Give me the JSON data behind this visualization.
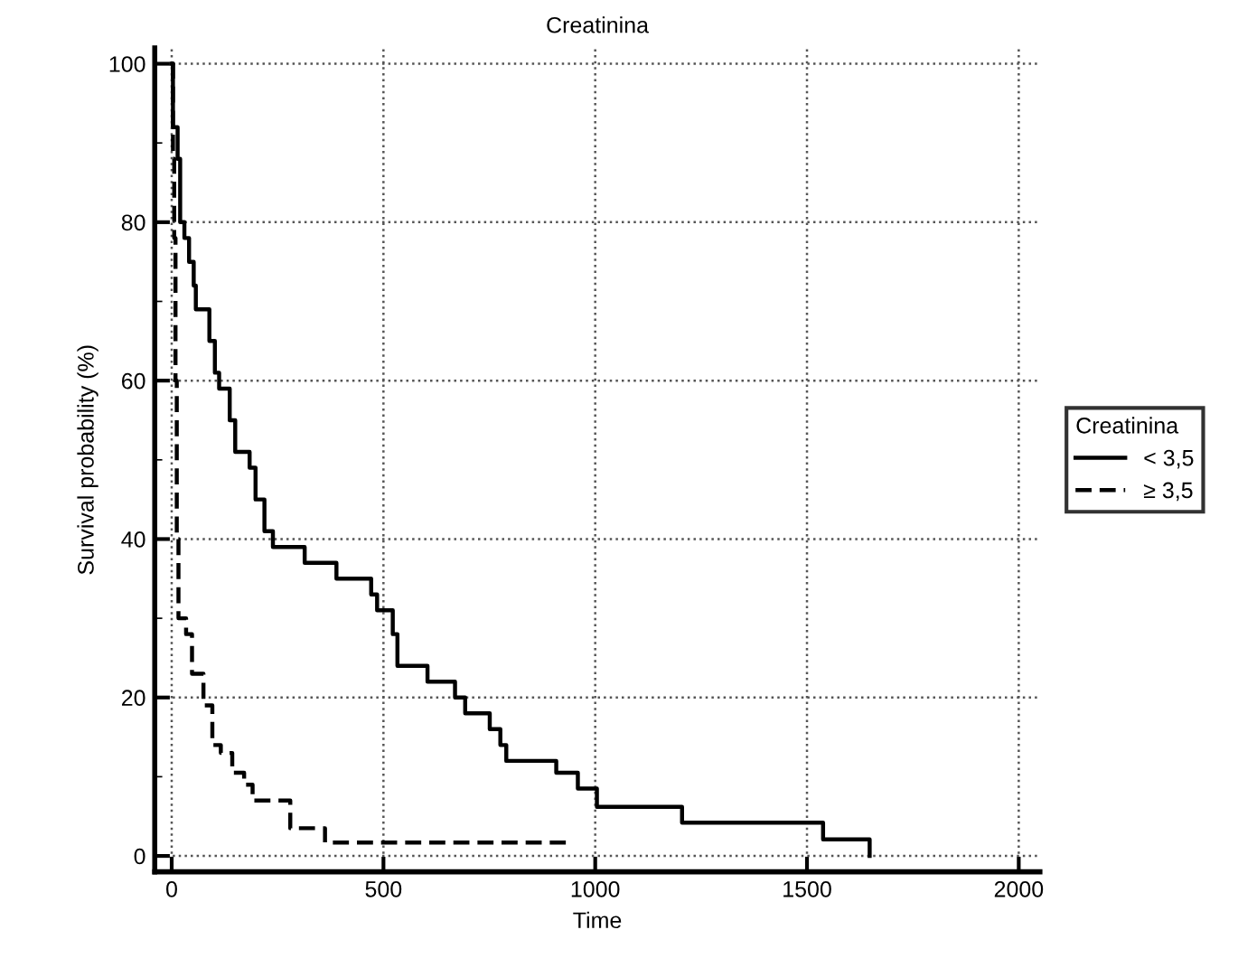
{
  "chart_data": {
    "type": "step",
    "title": "Creatinina",
    "xlabel": "Time",
    "ylabel": "Survival probability (%)",
    "legend_title": "Creatinina",
    "legend": "right",
    "grid": true,
    "xlim": [
      -40,
      2050
    ],
    "ylim": [
      -2,
      102
    ],
    "xticks": [
      0,
      500,
      1000,
      1500,
      2000
    ],
    "yticks": [
      0,
      {
        "value": 10,
        "label": null
      },
      20,
      {
        "value": 30,
        "label": null
      },
      40,
      {
        "value": 50,
        "label": null
      },
      60,
      {
        "value": 70,
        "label": null
      },
      80,
      {
        "value": 90,
        "label": null
      },
      100
    ],
    "series": [
      {
        "name": "< 3,5",
        "color": "#000000",
        "line_style": "solid",
        "x": [
          0,
          3,
          14,
          20,
          30,
          41,
          52,
          57,
          89,
          102,
          112,
          137,
          150,
          184,
          198,
          219,
          239,
          314,
          389,
          471,
          485,
          522,
          533,
          604,
          669,
          693,
          751,
          776,
          790,
          908,
          959,
          1004,
          1205,
          1538,
          1648
        ],
        "values": [
          100,
          92,
          88,
          80,
          78,
          75,
          72,
          69,
          65,
          61,
          59,
          55,
          51,
          49,
          45,
          41,
          39,
          37,
          35,
          33,
          31,
          28,
          24,
          22,
          20,
          18,
          16,
          14,
          12,
          10.5,
          8.5,
          6.2,
          4.2,
          2.1,
          0
        ]
      },
      {
        "name": "≥ 3,5",
        "color": "#000000",
        "line_style": "dashed",
        "x": [
          0,
          3,
          6,
          9,
          12,
          16,
          34,
          48,
          75,
          96,
          116,
          143,
          171,
          191,
          280,
          362,
          936
        ],
        "values": [
          100,
          88,
          78,
          60,
          40,
          30,
          28,
          23,
          19,
          14,
          13,
          10.5,
          9,
          7,
          3.5,
          1.7,
          1.7
        ]
      }
    ]
  }
}
